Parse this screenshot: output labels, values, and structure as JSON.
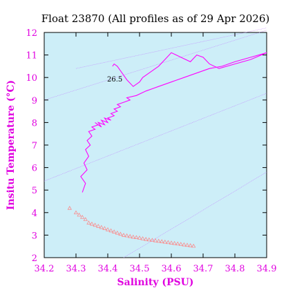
{
  "chart_data": {
    "type": "scatter",
    "title": "Float 23870  (All profiles as of 29 Apr 2026)",
    "xlabel": "Salinity (PSU)",
    "ylabel": "Insitu Temperature (°C)",
    "xlim": [
      34.2,
      34.9
    ],
    "ylim": [
      2,
      12
    ],
    "xticks": [
      "34.2",
      "34.3",
      "34.4",
      "34.5",
      "34.6",
      "34.7",
      "34.8",
      "34.9"
    ],
    "yticks": [
      "2",
      "3",
      "4",
      "5",
      "6",
      "7",
      "8",
      "9",
      "10",
      "11",
      "12"
    ],
    "grid": false,
    "isopycnal_label": "26.5",
    "colors": {
      "background": "#cdeef8",
      "axis": "#e000e0",
      "profile_line": "#ff00ff",
      "deep_marker": "#ff8080",
      "isopycnal": "#c080ff"
    },
    "series": [
      {
        "kind": "line",
        "x": [
          34.32,
          34.33,
          34.315,
          34.335,
          34.325,
          34.34,
          34.33,
          34.345,
          34.335,
          34.35,
          34.34,
          34.36,
          34.35,
          34.37,
          34.36,
          34.38,
          34.37,
          34.39,
          34.38,
          34.4,
          34.39,
          34.41,
          34.4,
          34.42,
          34.41,
          34.43,
          34.42,
          34.44,
          34.43,
          34.45,
          34.47,
          34.46,
          34.49,
          34.52,
          34.56,
          34.6,
          34.64,
          34.68,
          34.72,
          34.76,
          34.8,
          34.85,
          34.9,
          34.85,
          34.8,
          34.75,
          34.72,
          34.7,
          34.68,
          34.66,
          34.63,
          34.6,
          34.58,
          34.56,
          34.53,
          34.51,
          34.5,
          34.48,
          34.46,
          34.45,
          34.44,
          34.43,
          34.42,
          34.415
        ],
        "y": [
          4.9,
          5.3,
          5.6,
          5.9,
          6.2,
          6.5,
          6.8,
          7.0,
          7.2,
          7.4,
          7.6,
          7.7,
          7.8,
          7.9,
          8.0,
          7.8,
          8.0,
          7.9,
          8.1,
          8.0,
          8.2,
          8.1,
          8.2,
          8.3,
          8.4,
          8.5,
          8.6,
          8.7,
          8.8,
          8.9,
          9.0,
          9.1,
          9.2,
          9.4,
          9.6,
          9.8,
          10.0,
          10.2,
          10.4,
          10.5,
          10.7,
          10.9,
          11.1,
          10.8,
          10.6,
          10.4,
          10.6,
          10.9,
          11.0,
          10.7,
          10.9,
          11.1,
          10.8,
          10.5,
          10.2,
          10.0,
          9.8,
          9.6,
          9.9,
          10.1,
          10.3,
          10.5,
          10.6,
          10.5
        ]
      },
      {
        "kind": "markers",
        "x": [
          34.28,
          34.3,
          34.31,
          34.32,
          34.33,
          34.34,
          34.35,
          34.36,
          34.37,
          34.38,
          34.39,
          34.4,
          34.41,
          34.42,
          34.43,
          34.44,
          34.45,
          34.46,
          34.47,
          34.48,
          34.49,
          34.5,
          34.51,
          34.52,
          34.53,
          34.54,
          34.55,
          34.56,
          34.57,
          34.58,
          34.59,
          34.6,
          34.61,
          34.62,
          34.63,
          34.64,
          34.65,
          34.66,
          34.67
        ],
        "y": [
          4.2,
          4.0,
          3.9,
          3.8,
          3.7,
          3.55,
          3.5,
          3.45,
          3.4,
          3.35,
          3.3,
          3.25,
          3.2,
          3.15,
          3.1,
          3.05,
          3.0,
          2.98,
          2.95,
          2.92,
          2.9,
          2.88,
          2.85,
          2.82,
          2.8,
          2.78,
          2.76,
          2.74,
          2.72,
          2.7,
          2.68,
          2.66,
          2.64,
          2.62,
          2.6,
          2.58,
          2.56,
          2.54,
          2.52
        ]
      }
    ]
  }
}
